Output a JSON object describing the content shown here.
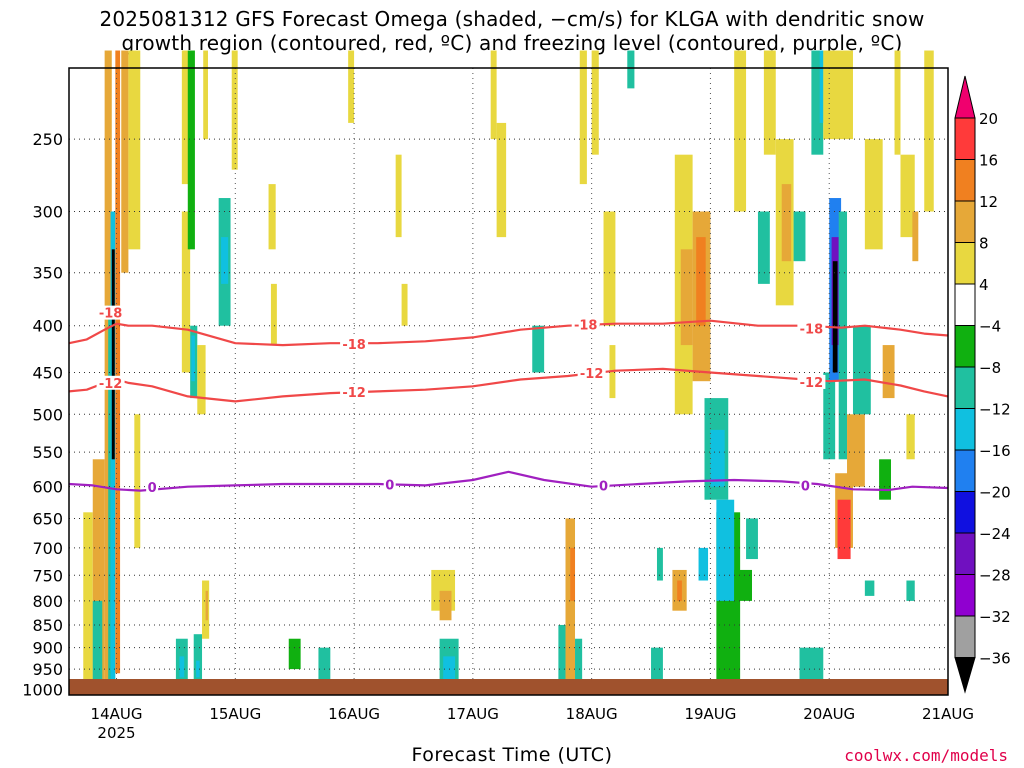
{
  "title": {
    "line1": "2025081312 GFS Forecast Omega (shaded, −cm/s) for KLGA with dendritic snow",
    "line2": "growth region (contoured, red, ºC) and freezing level (contoured, purple, ºC)"
  },
  "credit": "coolwx.com/models",
  "chart_data": {
    "type": "heatmap",
    "xlabel": "Forecast Time (UTC)",
    "ylabel": "",
    "x_ticks": [
      {
        "label": "14AUG",
        "sub": "2025"
      },
      {
        "label": "15AUG",
        "sub": ""
      },
      {
        "label": "16AUG",
        "sub": ""
      },
      {
        "label": "17AUG",
        "sub": ""
      },
      {
        "label": "18AUG",
        "sub": ""
      },
      {
        "label": "19AUG",
        "sub": ""
      },
      {
        "label": "20AUG",
        "sub": ""
      },
      {
        "label": "21AUG",
        "sub": ""
      }
    ],
    "xlim_days": [
      13.6,
      21.0
    ],
    "y_ticks_hpa": [
      250,
      300,
      350,
      400,
      450,
      500,
      550,
      600,
      650,
      700,
      750,
      800,
      850,
      900,
      950,
      1000
    ],
    "ylim_hpa": [
      200,
      1010
    ],
    "grid": true,
    "colorbar": {
      "labels": [
        "20",
        "16",
        "12",
        "8",
        "4",
        "−4",
        "−8",
        "−12",
        "−16",
        "−20",
        "−24",
        "−28",
        "−32",
        "−36"
      ],
      "colors": [
        "#f0006e",
        "#ff3a3a",
        "#f08020",
        "#e6a838",
        "#e8d840",
        "#ffffff",
        "#10b010",
        "#20c0a0",
        "#10c0e0",
        "#2080f0",
        "#1010e0",
        "#7010c0",
        "#9000d0",
        "#a0a0a0",
        "#000000"
      ]
    },
    "series": [
      {
        "name": "-18",
        "color": "#f04848",
        "x": [
          13.6,
          13.75,
          13.9,
          14.0,
          14.1,
          14.3,
          14.6,
          15.0,
          15.4,
          15.8,
          16.2,
          16.6,
          17.0,
          17.4,
          17.8,
          18.2,
          18.6,
          19.0,
          19.4,
          19.8,
          20.1,
          20.3,
          20.6,
          20.8,
          21.0
        ],
        "y": [
          418,
          414,
          404,
          398,
          400,
          400,
          404,
          418,
          420,
          418,
          418,
          416,
          412,
          404,
          400,
          398,
          398,
          395,
          400,
          400,
          402,
          400,
          404,
          408,
          410
        ]
      },
      {
        "name": "-12",
        "color": "#f04848",
        "x": [
          13.6,
          13.75,
          13.9,
          14.0,
          14.1,
          14.3,
          14.6,
          15.0,
          15.4,
          15.8,
          16.2,
          16.6,
          17.0,
          17.4,
          17.8,
          18.2,
          18.6,
          19.0,
          19.4,
          19.8,
          20.0,
          20.3,
          20.6,
          20.8,
          21.0
        ],
        "y": [
          472,
          470,
          462,
          458,
          462,
          466,
          478,
          484,
          478,
          474,
          472,
          470,
          466,
          458,
          454,
          448,
          446,
          450,
          454,
          458,
          460,
          458,
          465,
          472,
          478
        ]
      },
      {
        "name": "0",
        "color": "#a020c0",
        "x": [
          13.6,
          13.8,
          14.0,
          14.2,
          14.6,
          15.0,
          15.4,
          15.8,
          16.2,
          16.6,
          17.0,
          17.3,
          17.6,
          18.0,
          18.4,
          18.8,
          19.2,
          19.6,
          19.9,
          20.2,
          20.5,
          20.7,
          21.0
        ],
        "y": [
          596,
          598,
          604,
          606,
          600,
          598,
          596,
          596,
          596,
          598,
          590,
          578,
          590,
          600,
          596,
          592,
          590,
          592,
          596,
          604,
          605,
          600,
          602
        ]
      }
    ],
    "contour_labels": [
      {
        "text": "-18",
        "x": 13.95,
        "y": 388
      },
      {
        "text": "-18",
        "x": 16.0,
        "y": 420
      },
      {
        "text": "-18",
        "x": 17.95,
        "y": 400
      },
      {
        "text": "-18",
        "x": 19.85,
        "y": 404
      },
      {
        "text": "-12",
        "x": 13.95,
        "y": 463
      },
      {
        "text": "-12",
        "x": 16.0,
        "y": 474
      },
      {
        "text": "-12",
        "x": 18.0,
        "y": 452
      },
      {
        "text": "-12",
        "x": 19.85,
        "y": 462
      },
      {
        "text": "0",
        "x": 14.3,
        "y": 602
      },
      {
        "text": "0",
        "x": 16.3,
        "y": 598
      },
      {
        "text": "0",
        "x": 18.1,
        "y": 600
      },
      {
        "text": "0",
        "x": 19.8,
        "y": 600
      }
    ],
    "omega_regions": [
      {
        "t0": 13.72,
        "t1": 13.8,
        "p0": 640,
        "p1": 990,
        "v": 6
      },
      {
        "t0": 13.8,
        "t1": 13.9,
        "p0": 560,
        "p1": 1000,
        "v": 8
      },
      {
        "t0": 13.8,
        "t1": 13.88,
        "p0": 800,
        "p1": 995,
        "v": -10
      },
      {
        "t0": 13.9,
        "t1": 13.96,
        "p0": 200,
        "p1": 1000,
        "v": 8
      },
      {
        "t0": 13.93,
        "t1": 13.97,
        "p0": 380,
        "p1": 1000,
        "v": -8
      },
      {
        "t0": 13.95,
        "t1": 13.99,
        "p0": 300,
        "p1": 1000,
        "v": -14
      },
      {
        "t0": 13.96,
        "t1": 13.985,
        "p0": 330,
        "p1": 560,
        "v": -40
      },
      {
        "t0": 13.99,
        "t1": 14.03,
        "p0": 200,
        "p1": 960,
        "v": 14
      },
      {
        "t0": 14.04,
        "t1": 14.1,
        "p0": 200,
        "p1": 350,
        "v": 10
      },
      {
        "t0": 14.1,
        "t1": 14.2,
        "p0": 200,
        "p1": 330,
        "v": 6
      },
      {
        "t0": 14.15,
        "t1": 14.2,
        "p0": 500,
        "p1": 700,
        "v": 6
      },
      {
        "t0": 14.55,
        "t1": 14.63,
        "p0": 200,
        "p1": 280,
        "v": 6
      },
      {
        "t0": 14.55,
        "t1": 14.62,
        "p0": 300,
        "p1": 450,
        "v": 6
      },
      {
        "t0": 14.6,
        "t1": 14.66,
        "p0": 200,
        "p1": 330,
        "v": -6
      },
      {
        "t0": 14.62,
        "t1": 14.68,
        "p0": 400,
        "p1": 480,
        "v": -8
      },
      {
        "t0": 14.63,
        "t1": 14.66,
        "p0": 410,
        "p1": 460,
        "v": -14
      },
      {
        "t0": 14.68,
        "t1": 14.75,
        "p0": 420,
        "p1": 500,
        "v": 6
      },
      {
        "t0": 14.73,
        "t1": 14.77,
        "p0": 200,
        "p1": 250,
        "v": 6
      },
      {
        "t0": 14.86,
        "t1": 14.96,
        "p0": 290,
        "p1": 400,
        "v": -8
      },
      {
        "t0": 14.88,
        "t1": 14.94,
        "p0": 320,
        "p1": 360,
        "v": -14
      },
      {
        "t0": 14.97,
        "t1": 15.02,
        "p0": 200,
        "p1": 270,
        "v": 6
      },
      {
        "t0": 14.5,
        "t1": 14.6,
        "p0": 880,
        "p1": 990,
        "v": -8
      },
      {
        "t0": 14.53,
        "t1": 14.57,
        "p0": 920,
        "p1": 970,
        "v": -14
      },
      {
        "t0": 14.65,
        "t1": 14.72,
        "p0": 870,
        "p1": 990,
        "v": -8
      },
      {
        "t0": 14.67,
        "t1": 14.7,
        "p0": 930,
        "p1": 970,
        "v": -14
      },
      {
        "t0": 14.72,
        "t1": 14.78,
        "p0": 760,
        "p1": 880,
        "v": 6
      },
      {
        "t0": 14.75,
        "t1": 14.77,
        "p0": 780,
        "p1": 840,
        "v": 10
      },
      {
        "t0": 15.28,
        "t1": 15.34,
        "p0": 280,
        "p1": 330,
        "v": 6
      },
      {
        "t0": 15.3,
        "t1": 15.35,
        "p0": 360,
        "p1": 420,
        "v": 6
      },
      {
        "t0": 15.45,
        "t1": 15.55,
        "p0": 880,
        "p1": 950,
        "v": -6
      },
      {
        "t0": 15.7,
        "t1": 15.8,
        "p0": 900,
        "p1": 980,
        "v": -8
      },
      {
        "t0": 15.95,
        "t1": 16.0,
        "p0": 200,
        "p1": 240,
        "v": 6
      },
      {
        "t0": 16.35,
        "t1": 16.4,
        "p0": 260,
        "p1": 320,
        "v": 6
      },
      {
        "t0": 16.4,
        "t1": 16.45,
        "p0": 360,
        "p1": 400,
        "v": 6
      },
      {
        "t0": 16.65,
        "t1": 16.85,
        "p0": 740,
        "p1": 820,
        "v": 6
      },
      {
        "t0": 16.72,
        "t1": 16.82,
        "p0": 780,
        "p1": 840,
        "v": 10
      },
      {
        "t0": 16.72,
        "t1": 16.88,
        "p0": 880,
        "p1": 990,
        "v": -8
      },
      {
        "t0": 16.75,
        "t1": 16.85,
        "p0": 920,
        "p1": 980,
        "v": -14
      },
      {
        "t0": 17.15,
        "t1": 17.2,
        "p0": 200,
        "p1": 250,
        "v": 6
      },
      {
        "t0": 17.2,
        "t1": 17.28,
        "p0": 240,
        "p1": 320,
        "v": 6
      },
      {
        "t0": 17.5,
        "t1": 17.6,
        "p0": 400,
        "p1": 450,
        "v": -8
      },
      {
        "t0": 17.72,
        "t1": 17.78,
        "p0": 850,
        "p1": 990,
        "v": -8
      },
      {
        "t0": 17.78,
        "t1": 17.86,
        "p0": 650,
        "p1": 990,
        "v": 8
      },
      {
        "t0": 17.82,
        "t1": 17.86,
        "p0": 700,
        "p1": 800,
        "v": 12
      },
      {
        "t0": 17.86,
        "t1": 17.92,
        "p0": 880,
        "p1": 990,
        "v": -8
      },
      {
        "t0": 17.9,
        "t1": 17.96,
        "p0": 200,
        "p1": 280,
        "v": 6
      },
      {
        "t0": 18.0,
        "t1": 18.06,
        "p0": 200,
        "p1": 260,
        "v": 6
      },
      {
        "t0": 18.1,
        "t1": 18.2,
        "p0": 300,
        "p1": 400,
        "v": 6
      },
      {
        "t0": 18.15,
        "t1": 18.2,
        "p0": 420,
        "p1": 480,
        "v": 6
      },
      {
        "t0": 18.3,
        "t1": 18.36,
        "p0": 200,
        "p1": 220,
        "v": -8
      },
      {
        "t0": 18.5,
        "t1": 18.6,
        "p0": 900,
        "p1": 980,
        "v": -8
      },
      {
        "t0": 18.55,
        "t1": 18.6,
        "p0": 700,
        "p1": 760,
        "v": -8
      },
      {
        "t0": 18.68,
        "t1": 18.8,
        "p0": 740,
        "p1": 820,
        "v": 8
      },
      {
        "t0": 18.72,
        "t1": 18.76,
        "p0": 760,
        "p1": 800,
        "v": 12
      },
      {
        "t0": 18.7,
        "t1": 18.85,
        "p0": 260,
        "p1": 500,
        "v": 6
      },
      {
        "t0": 18.75,
        "t1": 18.85,
        "p0": 330,
        "p1": 420,
        "v": 8
      },
      {
        "t0": 18.85,
        "t1": 19.0,
        "p0": 300,
        "p1": 460,
        "v": 8
      },
      {
        "t0": 18.88,
        "t1": 18.96,
        "p0": 320,
        "p1": 400,
        "v": 12
      },
      {
        "t0": 18.95,
        "t1": 19.15,
        "p0": 480,
        "p1": 620,
        "v": -8
      },
      {
        "t0": 19.0,
        "t1": 19.12,
        "p0": 520,
        "p1": 600,
        "v": -14
      },
      {
        "t0": 18.9,
        "t1": 18.98,
        "p0": 700,
        "p1": 760,
        "v": -14
      },
      {
        "t0": 19.05,
        "t1": 19.25,
        "p0": 640,
        "p1": 990,
        "v": -6
      },
      {
        "t0": 19.05,
        "t1": 19.2,
        "p0": 620,
        "p1": 800,
        "v": -14
      },
      {
        "t0": 19.2,
        "t1": 19.35,
        "p0": 740,
        "p1": 800,
        "v": -6
      },
      {
        "t0": 19.2,
        "t1": 19.3,
        "p0": 200,
        "p1": 300,
        "v": 6
      },
      {
        "t0": 19.3,
        "t1": 19.4,
        "p0": 650,
        "p1": 720,
        "v": -8
      },
      {
        "t0": 19.4,
        "t1": 19.5,
        "p0": 300,
        "p1": 360,
        "v": -8
      },
      {
        "t0": 19.45,
        "t1": 19.55,
        "p0": 200,
        "p1": 260,
        "v": 6
      },
      {
        "t0": 19.55,
        "t1": 19.7,
        "p0": 250,
        "p1": 380,
        "v": 6
      },
      {
        "t0": 19.6,
        "t1": 19.68,
        "p0": 280,
        "p1": 340,
        "v": 8
      },
      {
        "t0": 19.7,
        "t1": 19.8,
        "p0": 300,
        "p1": 340,
        "v": -8
      },
      {
        "t0": 19.75,
        "t1": 19.95,
        "p0": 900,
        "p1": 980,
        "v": -8
      },
      {
        "t0": 19.85,
        "t1": 19.95,
        "p0": 200,
        "p1": 260,
        "v": -8
      },
      {
        "t0": 19.92,
        "t1": 19.95,
        "p0": 200,
        "p1": 240,
        "v": -14
      },
      {
        "t0": 19.95,
        "t1": 20.2,
        "p0": 200,
        "p1": 250,
        "v": 6
      },
      {
        "t0": 19.95,
        "t1": 20.05,
        "p0": 450,
        "p1": 560,
        "v": -8
      },
      {
        "t0": 20.0,
        "t1": 20.1,
        "p0": 290,
        "p1": 460,
        "v": -16
      },
      {
        "t0": 20.02,
        "t1": 20.08,
        "p0": 320,
        "p1": 420,
        "v": -26
      },
      {
        "t0": 20.03,
        "t1": 20.07,
        "p0": 340,
        "p1": 450,
        "v": -40
      },
      {
        "t0": 20.08,
        "t1": 20.15,
        "p0": 300,
        "p1": 560,
        "v": -8
      },
      {
        "t0": 20.05,
        "t1": 20.2,
        "p0": 580,
        "p1": 700,
        "v": 10
      },
      {
        "t0": 20.07,
        "t1": 20.18,
        "p0": 620,
        "p1": 720,
        "v": 18
      },
      {
        "t0": 20.15,
        "t1": 20.3,
        "p0": 500,
        "p1": 600,
        "v": 8
      },
      {
        "t0": 20.2,
        "t1": 20.35,
        "p0": 400,
        "p1": 500,
        "v": -8
      },
      {
        "t0": 20.3,
        "t1": 20.45,
        "p0": 250,
        "p1": 330,
        "v": 6
      },
      {
        "t0": 20.45,
        "t1": 20.55,
        "p0": 420,
        "p1": 480,
        "v": 8
      },
      {
        "t0": 20.55,
        "t1": 20.6,
        "p0": 200,
        "p1": 260,
        "v": 6
      },
      {
        "t0": 20.6,
        "t1": 20.72,
        "p0": 260,
        "p1": 320,
        "v": 6
      },
      {
        "t0": 20.65,
        "t1": 20.72,
        "p0": 500,
        "p1": 560,
        "v": 6
      },
      {
        "t0": 20.7,
        "t1": 20.75,
        "p0": 300,
        "p1": 340,
        "v": 8
      },
      {
        "t0": 20.8,
        "t1": 20.88,
        "p0": 200,
        "p1": 300,
        "v": 6
      },
      {
        "t0": 20.65,
        "t1": 20.72,
        "p0": 760,
        "p1": 800,
        "v": -8
      },
      {
        "t0": 20.3,
        "t1": 20.38,
        "p0": 760,
        "p1": 790,
        "v": -8
      },
      {
        "t0": 20.42,
        "t1": 20.52,
        "p0": 560,
        "p1": 620,
        "v": -6
      }
    ]
  }
}
